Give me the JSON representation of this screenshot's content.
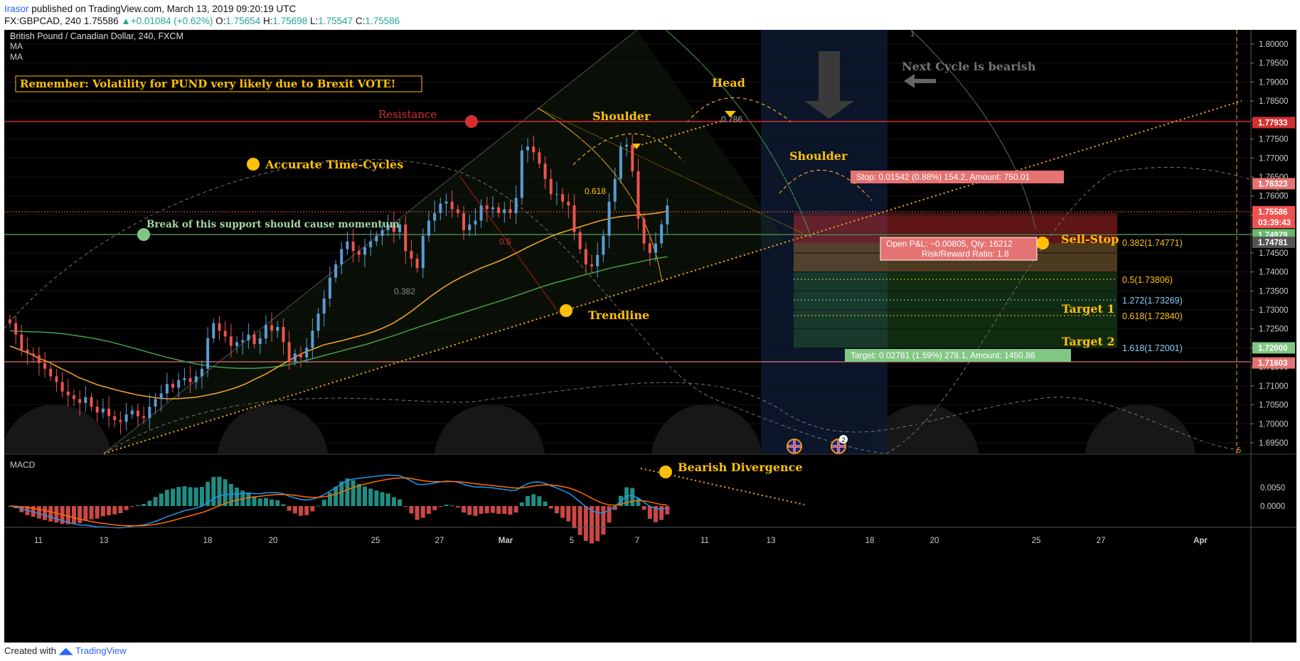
{
  "header": {
    "author": "Irasor",
    "published": "published on TradingView.com, March 13, 2019 09:20:19 UTC",
    "symbol": "FX:GBPCAD, 240",
    "last": "1.75586",
    "change": "+0.01084 (+0.62%)",
    "o_label": "O:",
    "o": "1.75654",
    "h_label": "H:",
    "h": "1.75698",
    "l_label": "L:",
    "l": "1.75547",
    "c_label": "C:",
    "c": "1.75586"
  },
  "legend": {
    "title": "British Pound / Canadian Dollar, 240, FXCM",
    "ma1": "MA",
    "ma2": "MA",
    "macd": "MACD"
  },
  "annotations": {
    "remember": "Remember: Volatility for PUND very likely due to Brexit VOTE!",
    "resistance": "Resistance",
    "time_cycles": "Accurate Time-Cycles",
    "break_support": "Break of this support should cause momentum",
    "shoulder_left": "Shoulder",
    "head": "Head",
    "shoulder_right": "Shoulder",
    "next_cycle": "Next Cycle is bearish",
    "trendline": "Trendline",
    "sell_stop": "Sell-Stop",
    "target1": "Target 1",
    "target2": "Target 2",
    "bearish_div": "Bearish Divergence",
    "stop_box": "Stop: 0.01542 (0.88%) 154.2, Amount: 750.01",
    "pnl_box_1": "Open P&L: −0.00805, Qty: 16212",
    "pnl_box_2": "Risk/Reward Ratio: 1.8",
    "target_box": "Target: 0.02781 (1.59%) 278.1, Amount: 1450.86",
    "fib_0618": "0.618",
    "fib_0786": "0.786",
    "fib_05": "0.5",
    "fib_0382_left": "0.382",
    "lev_0382": "0.382(1.74771)",
    "lev_05": "0.5(1.73806)",
    "lev_1272": "1.272(1.73269)",
    "lev_0618": "0.618(1.72840)",
    "lev_1618": "1.618(1.72001)",
    "cycle_label": "1",
    "cycle_label_right": "5",
    "event_badge": "2"
  },
  "price_axis": {
    "ticks": [
      "1.80000",
      "1.79500",
      "1.79000",
      "1.78500",
      "1.78000",
      "1.77500",
      "1.77000",
      "1.76500",
      "1.76000",
      "1.75500",
      "1.75000",
      "1.74500",
      "1.74000",
      "1.73500",
      "1.73000",
      "1.72500",
      "1.72000",
      "1.71500",
      "1.71000",
      "1.70500",
      "1.70000",
      "1.69500"
    ],
    "tick_values": [
      1.8,
      1.795,
      1.79,
      1.785,
      1.78,
      1.775,
      1.77,
      1.765,
      1.76,
      1.755,
      1.75,
      1.745,
      1.74,
      1.735,
      1.73,
      1.725,
      1.72,
      1.715,
      1.71,
      1.705,
      1.7,
      1.695
    ],
    "badges": [
      {
        "text": "1.77933",
        "value": 1.77933,
        "color": "#d32f2f"
      },
      {
        "text": "1.76323",
        "value": 1.76323,
        "color": "#e57373"
      },
      {
        "text": "1.75586",
        "value": 1.75586,
        "color": "#ef5350"
      },
      {
        "text": "03:39:43",
        "value": 1.753,
        "color": "#ef5350"
      },
      {
        "text": "1.74979",
        "value": 1.74979,
        "color": "#66bb6a"
      },
      {
        "text": "1.74781",
        "value": 1.74781,
        "color": "#555555"
      },
      {
        "text": "1.72000",
        "value": 1.72,
        "color": "#81c784"
      },
      {
        "text": "1.71603",
        "value": 1.71603,
        "color": "#e57373"
      }
    ]
  },
  "macd_axis": {
    "ticks": [
      "0.0050",
      "0.0000"
    ],
    "tick_values": [
      0.005,
      0.0
    ]
  },
  "time_axis": {
    "labels": [
      "11",
      "13",
      "18",
      "20",
      "25",
      "27",
      "Mar",
      "5",
      "7",
      "11",
      "13",
      "18",
      "20",
      "25",
      "27",
      "Apr"
    ]
  },
  "footer": {
    "created_with": "Created with",
    "brand": "TradingView"
  },
  "colors": {
    "up": "#5b9bd5",
    "down": "#ef5350",
    "ma_fast": "#f9a825",
    "ma_slow": "#43a047",
    "resistance": "#d32f2f",
    "support": "#66bb6a",
    "annotation": "#ffc107",
    "macd_line": "#2196f3",
    "signal_line": "#ff6d00"
  },
  "chart_data": {
    "type": "candlestick",
    "symbol": "GBPCAD",
    "timeframe": "240",
    "ylim": [
      1.6925,
      1.8025
    ],
    "levels": {
      "resistance": 1.77933,
      "support": 1.74979,
      "stop": 1.76323,
      "entry": 1.74781,
      "target": 1.72,
      "lower_support": 1.71603
    },
    "closes": [
      1.7265,
      1.7235,
      1.7195,
      1.7185,
      1.718,
      1.716,
      1.7145,
      1.7125,
      1.711,
      1.7085,
      1.7075,
      1.7065,
      1.7055,
      1.707,
      1.7045,
      1.703,
      1.704,
      1.702,
      1.701,
      1.7005,
      1.7025,
      1.7035,
      1.702,
      1.7015,
      1.7045,
      1.7065,
      1.708,
      1.7105,
      1.7095,
      1.7115,
      1.712,
      1.711,
      1.7125,
      1.7145,
      1.7225,
      1.7265,
      1.7245,
      1.723,
      1.7205,
      1.7215,
      1.722,
      1.7235,
      1.721,
      1.7225,
      1.726,
      1.7245,
      1.7255,
      1.7215,
      1.7165,
      1.7185,
      1.7175,
      1.72,
      1.7245,
      1.729,
      1.733,
      1.7385,
      1.742,
      1.746,
      1.748,
      1.7455,
      1.7445,
      1.7465,
      1.748,
      1.7495,
      1.751,
      1.7525,
      1.7505,
      1.7525,
      1.7455,
      1.7435,
      1.741,
      1.7495,
      1.7535,
      1.7555,
      1.758,
      1.7585,
      1.7565,
      1.7555,
      1.751,
      1.7525,
      1.7535,
      1.7575,
      1.7565,
      1.757,
      1.7555,
      1.7565,
      1.7555,
      1.7595,
      1.772,
      1.773,
      1.7715,
      1.7685,
      1.7645,
      1.7605,
      1.7605,
      1.7585,
      1.7575,
      1.7505,
      1.746,
      1.742,
      1.7415,
      1.7445,
      1.7495,
      1.7585,
      1.7645,
      1.773,
      1.7735,
      1.7665,
      1.754,
      1.7475,
      1.745,
      1.7475,
      1.7525,
      1.7575
    ],
    "ma_fast": [
      1.7205,
      1.7195,
      1.7185,
      1.7172,
      1.7162,
      1.7148,
      1.7136,
      1.7122,
      1.7112,
      1.7102,
      1.7095,
      1.7088,
      1.7082,
      1.7076,
      1.7072,
      1.7068,
      1.7066,
      1.7066,
      1.7068,
      1.707,
      1.7075,
      1.708,
      1.7087,
      1.7095,
      1.7105,
      1.7118,
      1.713,
      1.7145,
      1.716,
      1.7175,
      1.7188,
      1.7198,
      1.7208,
      1.7214,
      1.722,
      1.7227,
      1.7234,
      1.7242,
      1.7252,
      1.7264,
      1.728,
      1.7298,
      1.7318,
      1.7338,
      1.7356,
      1.7372,
      1.7386,
      1.7398,
      1.741,
      1.742,
      1.743,
      1.7442,
      1.7455,
      1.7468,
      1.748,
      1.7492,
      1.7502,
      1.751,
      1.7518,
      1.7526,
      1.7534,
      1.754,
      1.7545,
      1.7548,
      1.755,
      1.7552,
      1.7555,
      1.756
    ],
    "ma_slow": [
      1.7245,
      1.7243,
      1.7242,
      1.724,
      1.7236,
      1.723,
      1.7224,
      1.7216,
      1.7206,
      1.7196,
      1.7185,
      1.7175,
      1.7166,
      1.7158,
      1.7152,
      1.7148,
      1.7146,
      1.7146,
      1.7148,
      1.7152,
      1.716,
      1.717,
      1.718,
      1.719,
      1.72,
      1.721,
      1.7222,
      1.7234,
      1.7247,
      1.726,
      1.7272,
      1.7284,
      1.7296,
      1.7308,
      1.732,
      1.7332,
      1.7345,
      1.7358,
      1.737,
      1.738,
      1.739,
      1.74,
      1.741,
      1.7418,
      1.7426,
      1.7434,
      1.744
    ]
  }
}
